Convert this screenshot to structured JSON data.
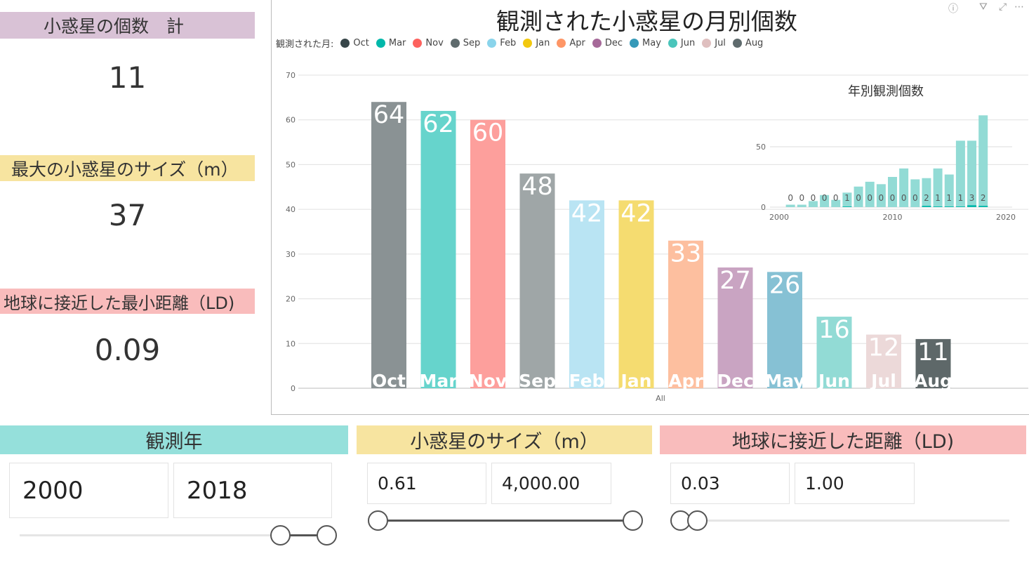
{
  "cards": [
    {
      "label": "小惑星の個数　計",
      "value": "11",
      "color": "#d9c2d6"
    },
    {
      "label": "最大の小惑星のサイズ（m）",
      "value": "37",
      "color": "#f7e4a0"
    },
    {
      "label": "地球に接近した最小距離（LD)",
      "value": "0.09",
      "color": "#f9bcbc"
    }
  ],
  "header_icons": [
    "help-icon",
    "filter-icon",
    "focus-mode-icon",
    "more-options-icon"
  ],
  "chart_data": [
    {
      "type": "bar",
      "title": "観測された小惑星の月別個数",
      "legend_title": "観測された月:",
      "legend": [
        {
          "name": "Oct",
          "color": "#374649"
        },
        {
          "name": "Mar",
          "color": "#01B8AA"
        },
        {
          "name": "Nov",
          "color": "#FD625E"
        },
        {
          "name": "Sep",
          "color": "#5F6B6D"
        },
        {
          "name": "Feb",
          "color": "#8AD4EB"
        },
        {
          "name": "Jan",
          "color": "#F2C80F"
        },
        {
          "name": "Apr",
          "color": "#FE9666"
        },
        {
          "name": "Dec",
          "color": "#A66999"
        },
        {
          "name": "May",
          "color": "#3599B8"
        },
        {
          "name": "Jun",
          "color": "#4AC5BB"
        },
        {
          "name": "Jul",
          "color": "#DFBFBF"
        },
        {
          "name": "Aug",
          "color": "#5F6B6D"
        }
      ],
      "categories": [
        "Oct",
        "Mar",
        "Nov",
        "Sep",
        "Feb",
        "Jan",
        "Apr",
        "Dec",
        "May",
        "Jun",
        "Jul",
        "Aug"
      ],
      "values": [
        64,
        62,
        60,
        48,
        42,
        42,
        33,
        27,
        26,
        16,
        12,
        11
      ],
      "bar_colors": [
        "#8a9294",
        "#66d4cc",
        "#fd9f9c",
        "#9fa6a7",
        "#b9e4f3",
        "#f5dc70",
        "#fdbf9f",
        "#c9a4c2",
        "#86c1d4",
        "#92dbd5",
        "#ecd9d9",
        "#5e6869"
      ],
      "xlabel": "All",
      "ylim": [
        0,
        70
      ],
      "yticks": [
        0,
        10,
        20,
        30,
        40,
        50,
        60,
        70
      ],
      "grid": true
    },
    {
      "type": "bar",
      "title": "年別観測個数",
      "x": [
        2001,
        2002,
        2003,
        2004,
        2005,
        2006,
        2007,
        2008,
        2009,
        2010,
        2011,
        2012,
        2013,
        2014,
        2015,
        2016,
        2017,
        2018
      ],
      "total": [
        2,
        2,
        5,
        10,
        6,
        12,
        17,
        21,
        19,
        25,
        32,
        23,
        24,
        32,
        27,
        55,
        55,
        76
      ],
      "highlighted": [
        0,
        0,
        0,
        0,
        0,
        1,
        0,
        0,
        0,
        0,
        0,
        0,
        2,
        1,
        1,
        1,
        3,
        2
      ],
      "xticks": [
        2000,
        2010,
        2020
      ],
      "yticks": [
        0,
        50
      ],
      "xlim": [
        2000,
        2020
      ],
      "colors": {
        "total": "#92dbd5",
        "highlighted": "#01B8AA"
      }
    }
  ],
  "slicers": [
    {
      "title": "観測年",
      "color": "#95e0db",
      "min": "2000",
      "max": "2018"
    },
    {
      "title": "小惑星のサイズ（m）",
      "color": "#f7e4a0",
      "min": "0.61",
      "max": "4,000.00"
    },
    {
      "title": "地球に接近した距離（LD)",
      "color": "#f9bcbc",
      "min": "0.03",
      "max": "1.00"
    }
  ]
}
